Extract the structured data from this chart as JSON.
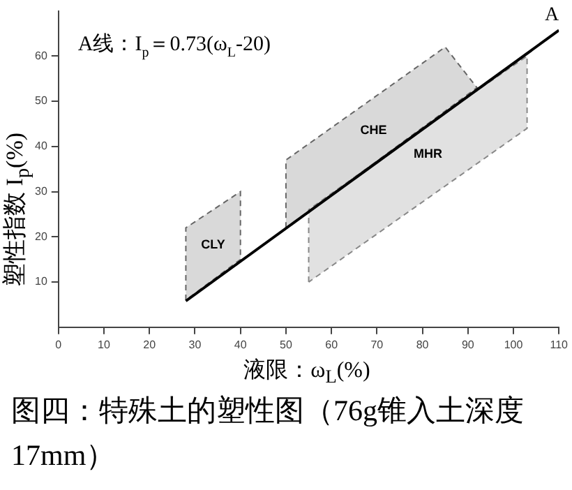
{
  "chart_data": {
    "type": "line",
    "title": "图四：特殊土的塑性图（76g锥入土深度17mm）",
    "xlabel": "液限：ω$_{L}$(%)",
    "ylabel": "塑性指数 I$_{p}$(%)",
    "annotations": [
      "A线：I$_{p}$＝0.73(ω$_{L}$-20)"
    ],
    "xlim": [
      0,
      110
    ],
    "xticks": [
      0,
      10,
      20,
      30,
      40,
      50,
      60,
      70,
      80,
      90,
      100,
      110
    ],
    "ylim": [
      0,
      70
    ],
    "yticks": [
      10,
      20,
      30,
      40,
      50,
      60
    ],
    "grid": false,
    "legend": false,
    "series": [
      {
        "name": "A",
        "type": "line",
        "color": "#000000",
        "x": [
          28,
          110
        ],
        "values": [
          5.8,
          65.7
        ]
      },
      {
        "name": "CLY",
        "type": "area",
        "color": "#666666",
        "line_style": "dashed",
        "x": [
          28,
          28,
          40,
          40,
          28
        ],
        "values": [
          6,
          22,
          30,
          15,
          6
        ]
      },
      {
        "name": "CHE",
        "type": "area",
        "color": "#666666",
        "line_style": "dashed",
        "x": [
          50,
          50,
          85,
          92,
          50
        ],
        "values": [
          22,
          37,
          62,
          53,
          22
        ]
      },
      {
        "name": "MHR",
        "type": "area",
        "color": "#888888",
        "line_style": "dashed",
        "x": [
          55,
          55,
          90,
          103,
          103,
          55
        ],
        "values": [
          10,
          26,
          51,
          60,
          44,
          10
        ]
      }
    ]
  }
}
